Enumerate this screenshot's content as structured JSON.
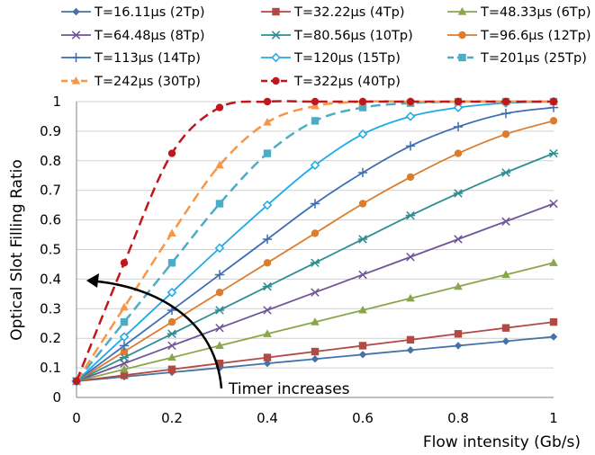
{
  "chart_data": {
    "type": "line",
    "xlabel": "Flow intensity (Gb/s)",
    "ylabel": "Optical Slot Filling Ratio",
    "xlim": [
      0,
      1
    ],
    "ylim": [
      0,
      1
    ],
    "x_ticks": [
      "0",
      "0.2",
      "0.4",
      "0.6",
      "0.8",
      "1"
    ],
    "y_ticks": [
      "0",
      "0.1",
      "0.2",
      "0.3",
      "0.4",
      "0.5",
      "0.6",
      "0.7",
      "0.8",
      "0.9",
      "1"
    ],
    "grid": "horizontal",
    "legend_position": "top",
    "annotation": {
      "text": "Timer increases",
      "arrow": "curved, pointing up-left"
    },
    "x": [
      0,
      0.1,
      0.2,
      0.3,
      0.4,
      0.5,
      0.6,
      0.7,
      0.8,
      0.9,
      1.0
    ],
    "series": [
      {
        "name": "T=16.11µs (2Tp)",
        "color": "#4572a7",
        "marker": "diamond",
        "dash": false,
        "values": [
          0.055,
          0.07,
          0.085,
          0.1,
          0.115,
          0.13,
          0.145,
          0.16,
          0.175,
          0.19,
          0.205
        ]
      },
      {
        "name": "T=32.22µs (4Tp)",
        "color": "#b04a45",
        "marker": "square",
        "dash": false,
        "values": [
          0.055,
          0.075,
          0.095,
          0.115,
          0.135,
          0.155,
          0.175,
          0.195,
          0.215,
          0.235,
          0.255
        ]
      },
      {
        "name": "T=48.33µs (6Tp)",
        "color": "#8aa64a",
        "marker": "triangle",
        "dash": false,
        "values": [
          0.055,
          0.095,
          0.135,
          0.175,
          0.215,
          0.255,
          0.295,
          0.335,
          0.375,
          0.415,
          0.455
        ]
      },
      {
        "name": "T=64.48µs (8Tp)",
        "color": "#6f5597",
        "marker": "x",
        "dash": false,
        "values": [
          0.055,
          0.115,
          0.175,
          0.235,
          0.295,
          0.355,
          0.415,
          0.475,
          0.535,
          0.595,
          0.655
        ]
      },
      {
        "name": "T=80.56µs (10Tp)",
        "color": "#2f8e92",
        "marker": "star",
        "dash": false,
        "values": [
          0.055,
          0.135,
          0.215,
          0.295,
          0.375,
          0.455,
          0.535,
          0.615,
          0.69,
          0.76,
          0.825
        ]
      },
      {
        "name": "T=96.6µs (12Tp)",
        "color": "#dc7c2d",
        "marker": "circle",
        "dash": false,
        "values": [
          0.055,
          0.155,
          0.255,
          0.355,
          0.455,
          0.555,
          0.655,
          0.745,
          0.825,
          0.89,
          0.935
        ]
      },
      {
        "name": "T=113µs (14Tp)",
        "color": "#3e6db3",
        "marker": "plus",
        "dash": false,
        "values": [
          0.055,
          0.175,
          0.295,
          0.415,
          0.535,
          0.655,
          0.76,
          0.85,
          0.915,
          0.96,
          0.98
        ]
      },
      {
        "name": "T=120µs (15Tp)",
        "color": "#1eaae6",
        "marker": "open-diamond",
        "dash": false,
        "values": [
          0.055,
          0.205,
          0.355,
          0.505,
          0.65,
          0.785,
          0.89,
          0.95,
          0.98,
          0.995,
          1.0
        ]
      },
      {
        "name": "T=201µs (25Tp)",
        "color": "#4aacc6",
        "marker": "square",
        "dash": true,
        "values": [
          0.055,
          0.255,
          0.455,
          0.655,
          0.825,
          0.935,
          0.98,
          0.995,
          1.0,
          1.0,
          1.0
        ]
      },
      {
        "name": "T=242µs (30Tp)",
        "color": "#f79646",
        "marker": "triangle",
        "dash": true,
        "values": [
          0.055,
          0.305,
          0.555,
          0.785,
          0.93,
          0.985,
          1.0,
          1.0,
          1.0,
          1.0,
          1.0
        ]
      },
      {
        "name": "T=322µs (40Tp)",
        "color": "#c0161c",
        "marker": "circle",
        "dash": true,
        "values": [
          0.055,
          0.455,
          0.825,
          0.98,
          1.0,
          1.0,
          1.0,
          1.0,
          1.0,
          1.0,
          1.0
        ]
      }
    ]
  }
}
